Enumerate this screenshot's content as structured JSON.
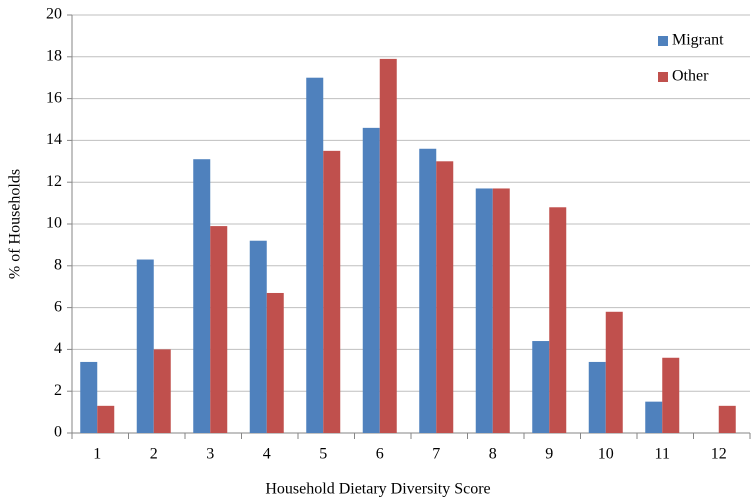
{
  "chart_data": {
    "type": "bar",
    "x_label": "Household Dietary Diversity Score",
    "y_label": "% of Households",
    "categories": [
      "1",
      "2",
      "3",
      "4",
      "5",
      "6",
      "7",
      "8",
      "9",
      "10",
      "11",
      "12"
    ],
    "series": [
      {
        "name": "Migrant",
        "color": "#4f81bd",
        "values": [
          3.4,
          8.3,
          13.1,
          9.2,
          17.0,
          14.6,
          13.6,
          11.7,
          4.4,
          3.4,
          1.5,
          0
        ]
      },
      {
        "name": "Other",
        "color": "#c0504d",
        "values": [
          1.3,
          4.0,
          9.9,
          6.7,
          13.5,
          17.9,
          13.0,
          11.7,
          10.8,
          5.8,
          3.6,
          1.3
        ]
      }
    ],
    "ylim": [
      0,
      20
    ],
    "yticks": [
      0,
      2,
      4,
      6,
      8,
      10,
      12,
      14,
      16,
      18,
      20
    ],
    "grid": true,
    "legend": "top-right"
  }
}
